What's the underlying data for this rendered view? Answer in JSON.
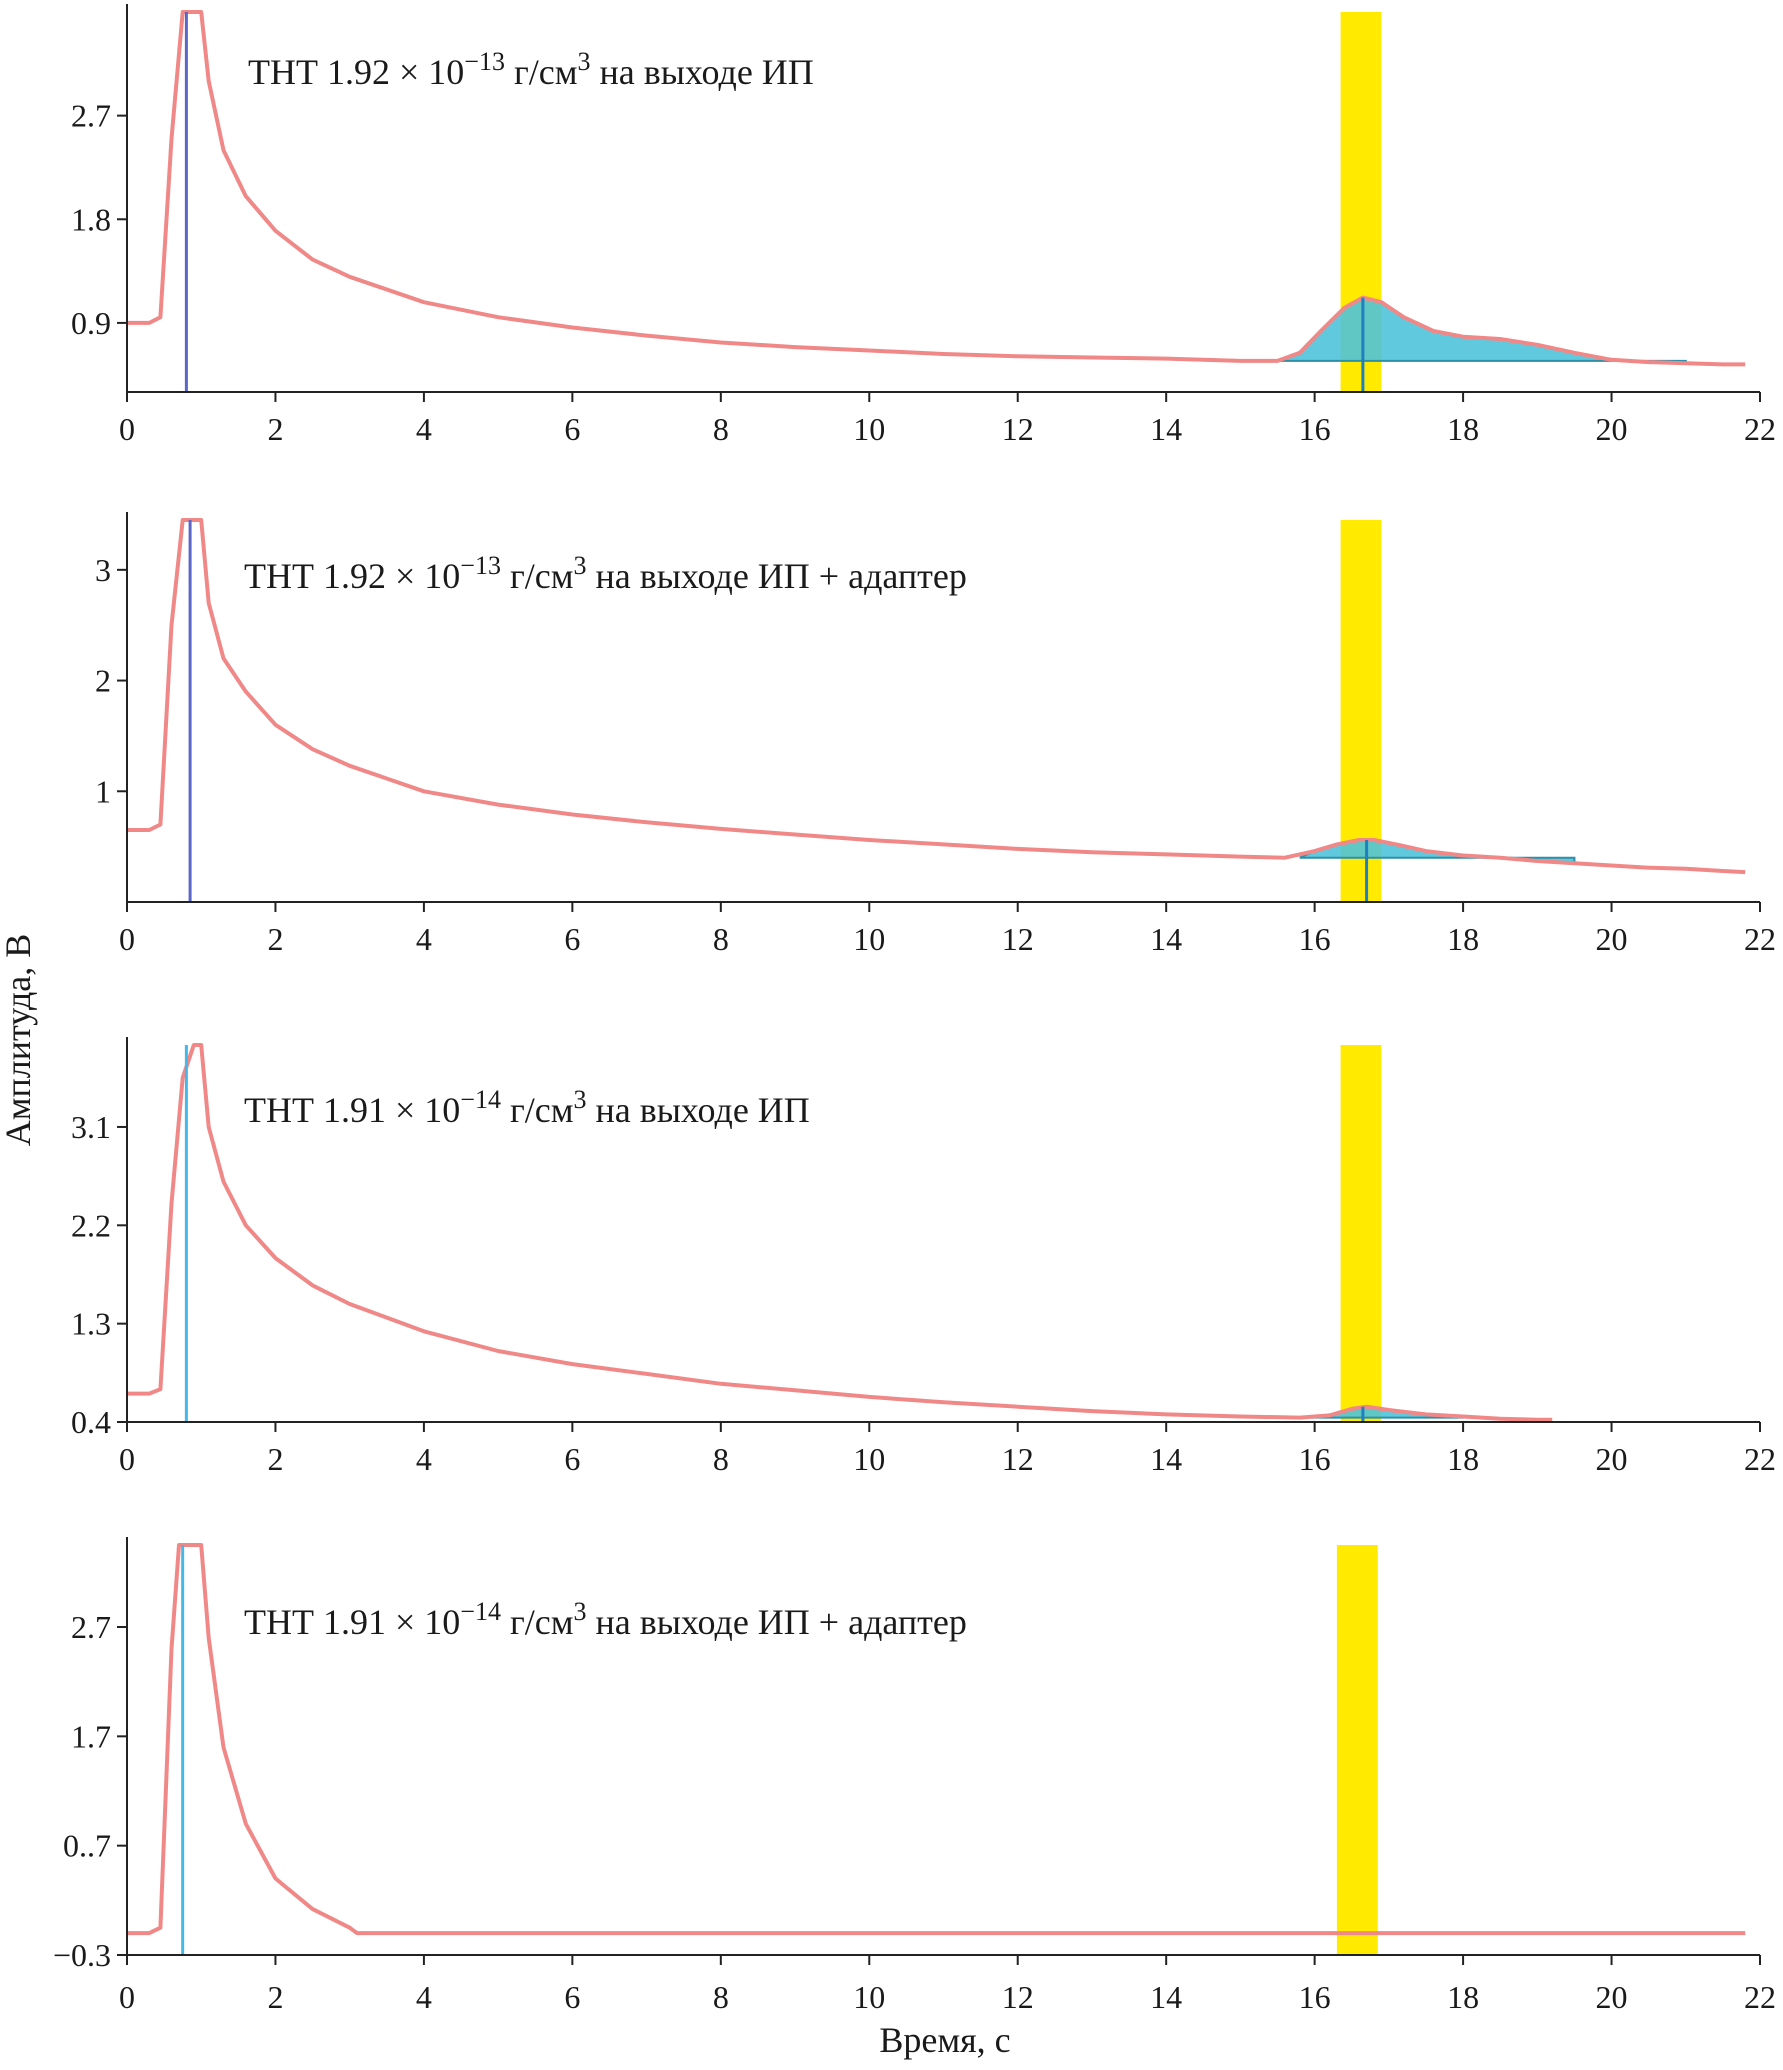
{
  "figure": {
    "ylabel": "Амплитуда, В",
    "xlabel": "Время, с"
  },
  "chart_data": [
    {
      "type": "line",
      "annotation": {
        "prefix": "ТНТ 1.92 × 10",
        "exponent": "−13",
        "units": " г/см",
        "units_exp": "3",
        "suffix": " на выходе ИП"
      },
      "x_ticks": [
        0,
        2,
        4,
        6,
        8,
        10,
        12,
        14,
        16,
        18,
        20,
        22
      ],
      "x_tick_labels": [
        "0",
        "2",
        "4",
        "6",
        "8",
        "10",
        "12",
        "14",
        "16",
        "18",
        "20",
        "22"
      ],
      "y_ticks": [
        0.9,
        1.8,
        2.7
      ],
      "y_tick_labels": [
        "0.9",
        "1.8",
        "2.7"
      ],
      "xlim": [
        0,
        22
      ],
      "ylim": [
        0.3,
        3.6
      ],
      "highlight_band": [
        16.35,
        16.9
      ],
      "highlight_color": "#ffea00",
      "marker_x": 0.8,
      "marker_color": "#5a66c8",
      "peak_marker_x": 16.65,
      "series": [
        {
          "name": "signal",
          "color": "#f08888",
          "x": [
            0,
            0.3,
            0.45,
            0.6,
            0.75,
            0.9,
            1.0,
            1.1,
            1.3,
            1.6,
            2,
            2.5,
            3,
            4,
            5,
            6,
            7,
            8,
            9,
            10,
            11,
            12,
            13,
            14,
            15,
            15.5,
            15.8,
            16.1,
            16.4,
            16.65,
            16.9,
            17.2,
            17.6,
            18,
            18.5,
            19,
            19.5,
            20,
            20.5,
            21,
            21.5,
            21.8
          ],
          "y": [
            0.9,
            0.9,
            0.95,
            2.5,
            3.6,
            3.6,
            3.6,
            3.0,
            2.4,
            2.0,
            1.7,
            1.45,
            1.3,
            1.08,
            0.95,
            0.86,
            0.79,
            0.73,
            0.69,
            0.66,
            0.63,
            0.61,
            0.6,
            0.59,
            0.57,
            0.57,
            0.64,
            0.84,
            1.03,
            1.12,
            1.08,
            0.95,
            0.83,
            0.78,
            0.76,
            0.71,
            0.64,
            0.58,
            0.56,
            0.55,
            0.54,
            0.54
          ]
        }
      ],
      "peak_area": {
        "color": "#4fc3d9",
        "x": [
          15.5,
          15.8,
          16.1,
          16.4,
          16.65,
          16.9,
          17.2,
          17.6,
          18,
          18.5,
          19,
          19.5,
          20,
          20.5,
          21
        ],
        "y": [
          0.57,
          0.64,
          0.84,
          1.03,
          1.12,
          1.08,
          0.95,
          0.83,
          0.78,
          0.76,
          0.71,
          0.64,
          0.58,
          0.56,
          0.55
        ],
        "baseline": 0.57
      }
    },
    {
      "type": "line",
      "annotation": {
        "prefix": "ТНТ 1.92 × 10",
        "exponent": "−13",
        "units": " г/см",
        "units_exp": "3",
        "suffix": " на выходе ИП + адаптер"
      },
      "x_ticks": [
        0,
        2,
        4,
        6,
        8,
        10,
        12,
        14,
        16,
        18,
        20,
        22
      ],
      "x_tick_labels": [
        "0",
        "2",
        "4",
        "6",
        "8",
        "10",
        "12",
        "14",
        "16",
        "18",
        "20",
        "22"
      ],
      "y_ticks": [
        1,
        2,
        3
      ],
      "y_tick_labels": [
        "1",
        "2",
        "3"
      ],
      "xlim": [
        0,
        22
      ],
      "ylim": [
        0,
        3.45
      ],
      "highlight_band": [
        16.35,
        16.9
      ],
      "highlight_color": "#ffea00",
      "marker_x": 0.85,
      "marker_color": "#5a66c8",
      "peak_marker_x": 16.7,
      "series": [
        {
          "name": "signal",
          "color": "#f08888",
          "x": [
            0,
            0.3,
            0.45,
            0.6,
            0.75,
            0.9,
            1.0,
            1.1,
            1.3,
            1.6,
            2,
            2.5,
            3,
            4,
            5,
            6,
            7,
            8,
            9,
            10,
            11,
            12,
            13,
            14,
            15,
            15.6,
            16,
            16.3,
            16.6,
            16.8,
            17.1,
            17.5,
            18,
            18.5,
            19,
            19.5,
            20,
            20.5,
            21,
            21.5,
            21.8
          ],
          "y": [
            0.65,
            0.65,
            0.7,
            2.5,
            3.45,
            3.45,
            3.45,
            2.7,
            2.2,
            1.9,
            1.6,
            1.38,
            1.23,
            1.0,
            0.88,
            0.79,
            0.72,
            0.66,
            0.61,
            0.56,
            0.52,
            0.48,
            0.45,
            0.43,
            0.41,
            0.4,
            0.46,
            0.52,
            0.56,
            0.56,
            0.52,
            0.46,
            0.42,
            0.4,
            0.37,
            0.35,
            0.33,
            0.31,
            0.3,
            0.28,
            0.27
          ]
        }
      ],
      "peak_area": {
        "color": "#4fc3d9",
        "x": [
          15.8,
          16,
          16.3,
          16.6,
          16.8,
          17.1,
          17.5,
          18,
          18.5,
          19,
          19.5
        ],
        "y": [
          0.4,
          0.46,
          0.52,
          0.56,
          0.56,
          0.52,
          0.46,
          0.42,
          0.4,
          0.37,
          0.35
        ],
        "baseline": 0.4
      }
    },
    {
      "type": "line",
      "annotation": {
        "prefix": "ТНТ 1.91 × 10",
        "exponent": "−14",
        "units": " г/см",
        "units_exp": "3",
        "suffix": " на выходе ИП"
      },
      "x_ticks": [
        0,
        2,
        4,
        6,
        8,
        10,
        12,
        14,
        16,
        18,
        20,
        22
      ],
      "x_tick_labels": [
        "0",
        "2",
        "4",
        "6",
        "8",
        "10",
        "12",
        "14",
        "16",
        "18",
        "20",
        "22"
      ],
      "y_ticks": [
        0.4,
        1.3,
        2.2,
        3.1
      ],
      "y_tick_labels": [
        "0.4",
        "1.3",
        "2.2",
        "3.1"
      ],
      "xlim": [
        0,
        22
      ],
      "ylim": [
        0.4,
        3.85
      ],
      "highlight_band": [
        16.35,
        16.9
      ],
      "highlight_color": "#ffea00",
      "marker_x": 0.8,
      "marker_color": "#45b8e8",
      "peak_marker_x": 16.65,
      "series": [
        {
          "name": "signal",
          "color": "#f08888",
          "x": [
            0,
            0.3,
            0.45,
            0.6,
            0.75,
            0.9,
            1.0,
            1.1,
            1.3,
            1.6,
            2,
            2.5,
            3,
            4,
            5,
            6,
            7,
            8,
            9,
            10,
            11,
            12,
            13,
            14,
            15,
            15.8,
            16.2,
            16.5,
            16.7,
            17,
            17.5,
            18,
            18.5,
            19,
            19.2
          ],
          "y": [
            0.66,
            0.66,
            0.7,
            2.4,
            3.55,
            3.85,
            3.85,
            3.1,
            2.6,
            2.2,
            1.9,
            1.65,
            1.48,
            1.23,
            1.05,
            0.93,
            0.84,
            0.75,
            0.69,
            0.63,
            0.58,
            0.54,
            0.5,
            0.47,
            0.45,
            0.44,
            0.46,
            0.52,
            0.54,
            0.51,
            0.47,
            0.45,
            0.43,
            0.42,
            0.42
          ]
        }
      ],
      "peak_area": {
        "color": "#4fc3d9",
        "x": [
          15.8,
          16.2,
          16.5,
          16.7,
          17,
          17.5,
          18
        ],
        "y": [
          0.44,
          0.46,
          0.52,
          0.54,
          0.51,
          0.47,
          0.45
        ],
        "baseline": 0.44
      }
    },
    {
      "type": "line",
      "annotation": {
        "prefix": "ТНТ 1.91 × 10",
        "exponent": "−14",
        "units": " г/см",
        "units_exp": "3",
        "suffix": " на выходе ИП + адаптер"
      },
      "x_ticks": [
        0,
        2,
        4,
        6,
        8,
        10,
        12,
        14,
        16,
        18,
        20,
        22
      ],
      "x_tick_labels": [
        "0",
        "2",
        "4",
        "6",
        "8",
        "10",
        "12",
        "14",
        "16",
        "18",
        "20",
        "22"
      ],
      "y_ticks": [
        -0.3,
        0.7,
        1.7,
        2.7
      ],
      "y_tick_labels": [
        "−0.3",
        "0..7",
        "1.7",
        "2.7"
      ],
      "xlim": [
        0,
        22
      ],
      "ylim": [
        -0.3,
        3.45
      ],
      "highlight_band": [
        16.3,
        16.85
      ],
      "highlight_color": "#ffea00",
      "marker_x": 0.75,
      "marker_color": "#45b8e8",
      "peak_marker_x": null,
      "series": [
        {
          "name": "signal",
          "color": "#f08888",
          "x": [
            0,
            0.3,
            0.45,
            0.6,
            0.7,
            0.9,
            1.0,
            1.1,
            1.3,
            1.6,
            2,
            2.5,
            3,
            3.1,
            4,
            8,
            12,
            16,
            20,
            21.8
          ],
          "y": [
            -0.1,
            -0.1,
            -0.05,
            2.5,
            3.45,
            3.45,
            3.45,
            2.6,
            1.6,
            0.9,
            0.4,
            0.12,
            -0.05,
            -0.1,
            -0.1,
            -0.1,
            -0.1,
            -0.1,
            -0.1,
            -0.1
          ]
        }
      ],
      "peak_area": null
    }
  ]
}
